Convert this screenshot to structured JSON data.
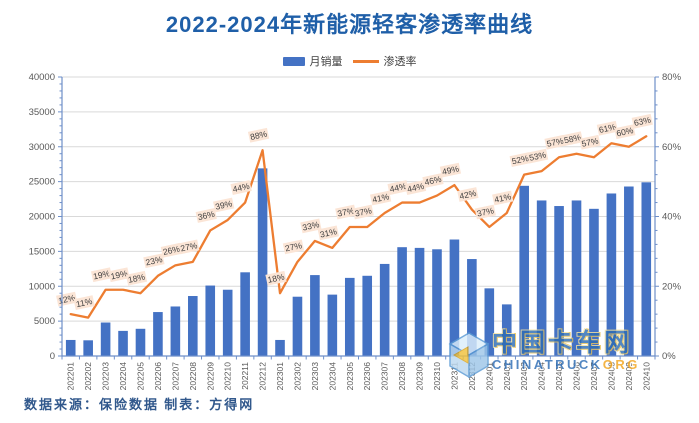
{
  "title": "2022-2024年新能源轻客渗透率曲线",
  "legend": {
    "bars_label": "月销量",
    "line_label": "渗透率"
  },
  "footer": {
    "source_text": "数据来源：保险数据  制表：方得网"
  },
  "watermark": {
    "cn": "中国卡车网",
    "en": "CHINATRUCK",
    "en_suffix": "ORG",
    "logo": "cube-arrow-logo"
  },
  "colors": {
    "bar": "#4472C4",
    "line": "#ED7D31",
    "title": "#1F5FA8",
    "label_bg": "#FBE5D6",
    "label_text": "#404040",
    "axis_text": "#595959",
    "axis_line": "#6E8FC9",
    "grid": "#D9D9D9",
    "plot_border": "#D9D9D9",
    "footer_text": "#31588C",
    "watermark_blue": "#2E6DB5",
    "watermark_orange": "#F2A51E"
  },
  "chart_data": {
    "type": "bar",
    "subtype": "bar+line-combo",
    "title": "2022-2024年新能源轻客渗透率曲线",
    "categories": [
      "202201",
      "202202",
      "202203",
      "202204",
      "202205",
      "202206",
      "202207",
      "202208",
      "202209",
      "202210",
      "202211",
      "202212",
      "202301",
      "202302",
      "202303",
      "202304",
      "202305",
      "202306",
      "202307",
      "202308",
      "202309",
      "202310",
      "202311",
      "202312",
      "202401",
      "202402",
      "202403",
      "202404",
      "202405",
      "202406",
      "202407",
      "202408",
      "202409",
      "202410"
    ],
    "series": [
      {
        "name": "月销量",
        "type": "bar",
        "axis": "left",
        "values": [
          2300,
          2250,
          4800,
          3600,
          3900,
          6300,
          7100,
          8600,
          10100,
          9500,
          12000,
          26900,
          2300,
          8500,
          11600,
          8800,
          11200,
          11500,
          13200,
          15600,
          15500,
          15300,
          16700,
          13900,
          9700,
          7400,
          24400,
          22300,
          21500,
          22300,
          21100,
          23300,
          24300,
          24900
        ]
      },
      {
        "name": "渗透率",
        "type": "line",
        "axis": "right",
        "values": [
          12,
          11,
          19,
          19,
          18,
          23,
          26,
          27,
          36,
          39,
          44,
          88,
          18,
          27,
          33,
          31,
          37,
          37,
          41,
          44,
          44,
          46,
          49,
          42,
          37,
          41,
          52,
          53,
          57,
          58,
          57,
          61,
          60,
          63
        ],
        "labels": [
          "12%",
          "11%",
          "19%",
          "19%",
          "18%",
          "23%",
          "26%",
          "27%",
          "36%",
          "39%",
          "44%",
          "88%",
          "18%",
          "27%",
          "33%",
          "31%",
          "37%",
          "37%",
          "41%",
          "44%",
          "44%",
          "46%",
          "49%",
          "42%",
          "37%",
          "41%",
          "52%",
          "53%",
          "57%",
          "58%",
          "57%",
          "61%",
          "60%",
          "63%"
        ]
      }
    ],
    "left_axis": {
      "min": 0,
      "max": 40000,
      "step": 5000,
      "tick_labels": [
        "0",
        "5000",
        "10000",
        "15000",
        "20000",
        "25000",
        "30000",
        "35000",
        "40000"
      ]
    },
    "right_axis": {
      "min": 0,
      "max": 80,
      "step": 20,
      "format": "percent",
      "tick_labels": [
        "0%",
        "20%",
        "40%",
        "60%",
        "80%"
      ]
    },
    "grid": true,
    "legend_position": "top",
    "x_label_rotation": -90
  }
}
